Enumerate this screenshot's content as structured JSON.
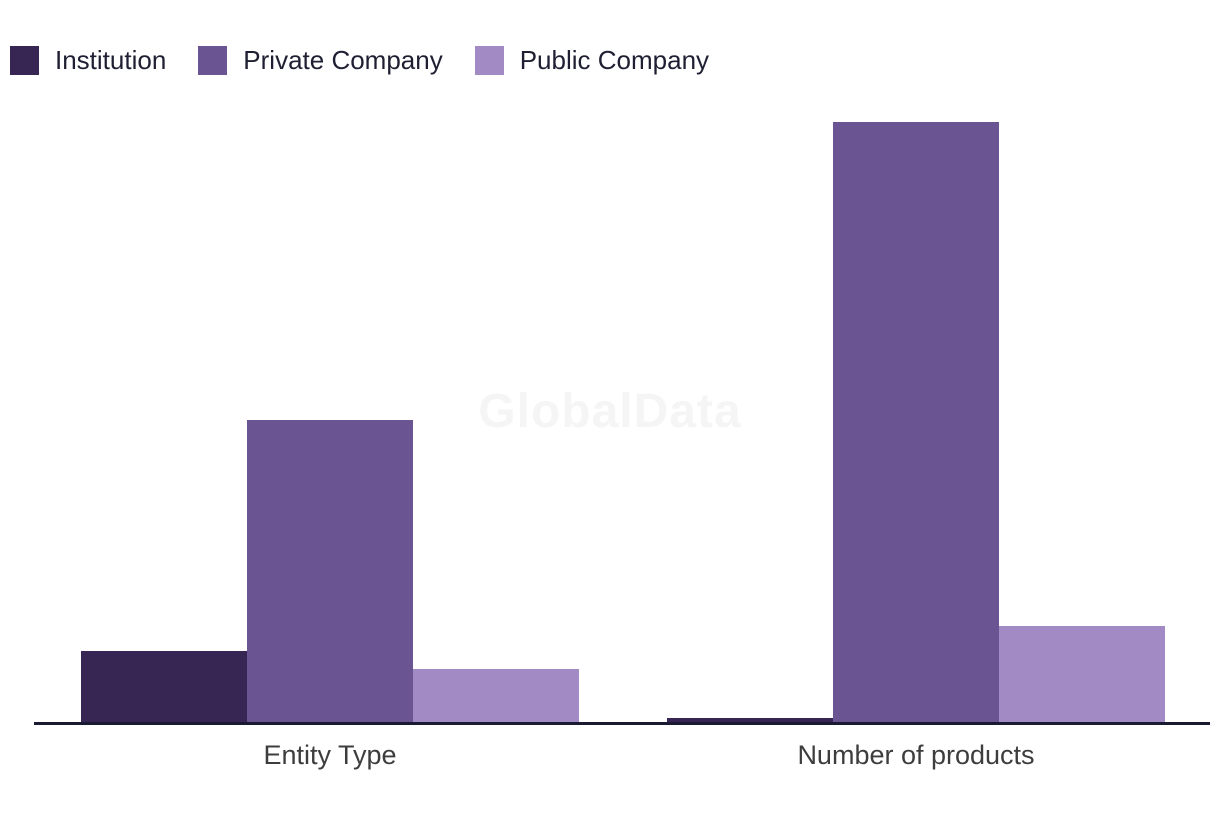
{
  "legend": {
    "items": [
      {
        "label": "Institution",
        "color": "#372554"
      },
      {
        "label": "Private Company",
        "color": "#6a5491"
      },
      {
        "label": "Public Company",
        "color": "#a28bc4"
      }
    ]
  },
  "watermark": {
    "text": "GlobalData"
  },
  "chart_data": {
    "type": "bar",
    "title": "",
    "xlabel": "",
    "ylabel": "",
    "categories": [
      "Entity Type",
      "Number of products"
    ],
    "series": [
      {
        "name": "Institution",
        "color": "#372554",
        "values": [
          71,
          4
        ]
      },
      {
        "name": "Private Company",
        "color": "#6a5491",
        "values": [
          302,
          600
        ]
      },
      {
        "name": "Public Company",
        "color": "#a28bc4",
        "values": [
          53,
          96
        ]
      }
    ],
    "ylim": [
      0,
      600
    ],
    "y_axis_visible": false,
    "gridlines": false,
    "legend_position": "top-left",
    "note": "No y-axis, gridlines or value labels are shown in the chart; values are relative bar heights measured in pixels (tallest bar = 600)."
  },
  "colors": {
    "background": "#ffffff",
    "axis_line": "#1a1a33",
    "axis_label": "#3d3d3d",
    "legend_label": "#1f1f33",
    "watermark": "#f5f5f5"
  }
}
